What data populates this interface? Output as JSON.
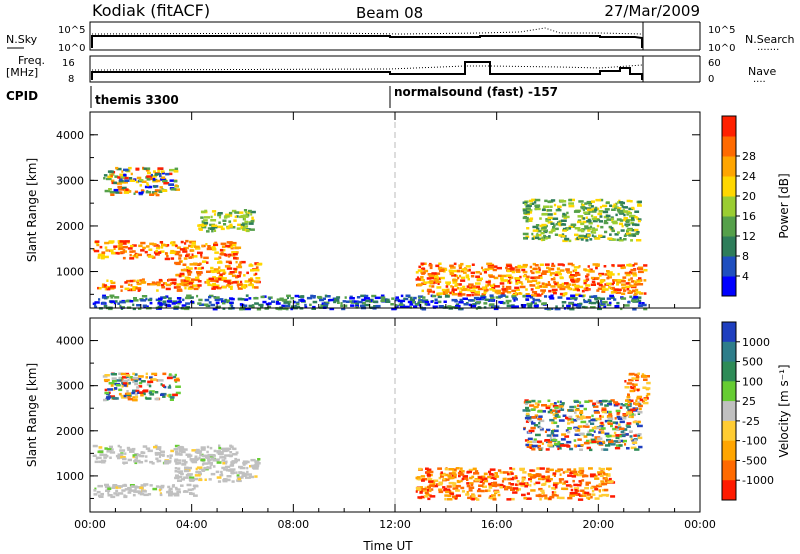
{
  "header": {
    "station": "Kodiak (fitACF)",
    "beam": "Beam 08",
    "date": "27/Mar/2009"
  },
  "panels": {
    "nsky_label": "N.Sky",
    "nsearch_label": "N.Search",
    "nsearch_dots": ".......",
    "freq_label_1": "Freq.",
    "freq_label_2": "[MHz]",
    "nave_label": "Nave",
    "nave_dots": "....",
    "cpid_label": "CPID",
    "nsky_ticks": [
      "10^5",
      "10^0"
    ],
    "nsearch_ticks": [
      "10^5",
      "10^0"
    ],
    "freq_ticks": [
      "16",
      "8"
    ],
    "nave_ticks": [
      "60",
      "0"
    ],
    "cpid_segments": [
      "themis 3300",
      "normalsound (fast) -157"
    ]
  },
  "chart_data": [
    {
      "type": "heatmap",
      "name": "power",
      "ylabel": "Slant Range [km]",
      "xlabel": "Time UT",
      "y_ticks": [
        "1000",
        "2000",
        "3000",
        "4000"
      ],
      "ylim": [
        200,
        4500
      ],
      "x_ticks": [
        "00:00",
        "04:00",
        "08:00",
        "12:00",
        "16:00",
        "20:00",
        "00:00"
      ],
      "xlim_hours": [
        0,
        24
      ],
      "colorbar": {
        "label": "Power [dB]",
        "ticks": [
          "4",
          "8",
          "12",
          "16",
          "20",
          "24",
          "28"
        ],
        "colors": [
          "#0000ff",
          "#1f4fbf",
          "#2e7d5a",
          "#55a04a",
          "#9acd32",
          "#ffd700",
          "#ffa500",
          "#ff6a00",
          "#ff2000"
        ]
      },
      "regions": [
        {
          "t": [
            0.5,
            3.4
          ],
          "r": [
            2700,
            3300
          ],
          "level": "mixed-high"
        },
        {
          "t": [
            0.1,
            5.8
          ],
          "r": [
            1300,
            1700
          ],
          "level": "high"
        },
        {
          "t": [
            0.1,
            4.1
          ],
          "r": [
            600,
            850
          ],
          "level": "high"
        },
        {
          "t": [
            3.3,
            6.6
          ],
          "r": [
            650,
            1250
          ],
          "level": "high"
        },
        {
          "t": [
            4.2,
            6.4
          ],
          "r": [
            1900,
            2400
          ],
          "level": "medium"
        },
        {
          "t": [
            12.8,
            21.8
          ],
          "r": [
            500,
            1200
          ],
          "level": "high"
        },
        {
          "t": [
            17.0,
            21.6
          ],
          "r": [
            1700,
            2600
          ],
          "level": "medium"
        },
        {
          "t": [
            0.1,
            21.8
          ],
          "r": [
            200,
            500
          ],
          "level": "low"
        }
      ]
    },
    {
      "type": "heatmap",
      "name": "velocity",
      "ylabel": "Slant Range [km]",
      "xlabel": "Time UT",
      "y_ticks": [
        "1000",
        "2000",
        "3000",
        "4000"
      ],
      "ylim": [
        200,
        4500
      ],
      "x_ticks": [
        "00:00",
        "04:00",
        "08:00",
        "12:00",
        "16:00",
        "20:00",
        "00:00"
      ],
      "xlim_hours": [
        0,
        24
      ],
      "colorbar": {
        "label": "Velocity [m s⁻¹]",
        "ticks": [
          "1000",
          "500",
          "100",
          "25",
          "-25",
          "-100",
          "-500",
          "-1000"
        ],
        "colors": [
          "#1f3fbf",
          "#2e7d8a",
          "#2e8b57",
          "#66cc33",
          "#c0c0c0",
          "#ffcc33",
          "#ffa500",
          "#ff6a00",
          "#ff1a00"
        ]
      },
      "regions": [
        {
          "t": [
            0.5,
            3.4
          ],
          "r": [
            2700,
            3300
          ],
          "level": "mixed"
        },
        {
          "t": [
            0.1,
            5.8
          ],
          "r": [
            1300,
            1700
          ],
          "level": "ground"
        },
        {
          "t": [
            0.1,
            4.1
          ],
          "r": [
            550,
            850
          ],
          "level": "ground"
        },
        {
          "t": [
            3.3,
            6.6
          ],
          "r": [
            900,
            1400
          ],
          "level": "ground"
        },
        {
          "t": [
            12.8,
            20.5
          ],
          "r": [
            500,
            1200
          ],
          "level": "negative"
        },
        {
          "t": [
            17.0,
            21.6
          ],
          "r": [
            1600,
            2700
          ],
          "level": "mixed"
        },
        {
          "t": [
            21.0,
            21.9
          ],
          "r": [
            2600,
            3300
          ],
          "level": "negative"
        }
      ]
    }
  ]
}
